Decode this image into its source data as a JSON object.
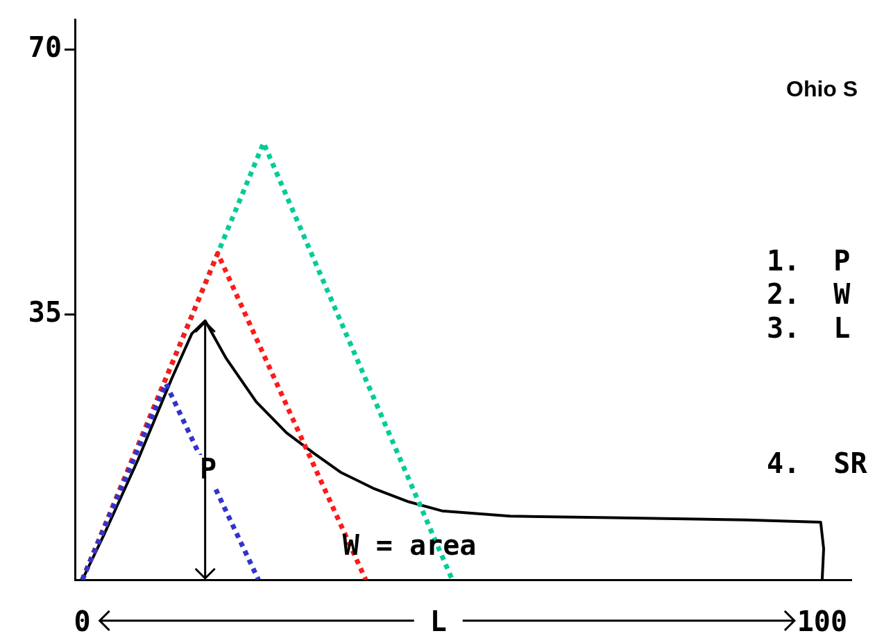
{
  "chart_data": {
    "type": "line",
    "xlabel": "L",
    "xlim": [
      -1,
      104
    ],
    "xticks": [
      0,
      100
    ],
    "ylim": [
      0,
      74
    ],
    "yticks": [
      35,
      70
    ],
    "grid": false,
    "legend": false,
    "marker": "none",
    "series": [
      {
        "type": "line",
        "color": "#3333cc",
        "line_style": "dotted",
        "x": [
          0,
          11.3,
          23.8
        ],
        "values": [
          0,
          25.9,
          0
        ]
      },
      {
        "type": "line",
        "color": "#ff1a1a",
        "line_style": "dotted",
        "x": [
          0,
          18.3,
          38.3
        ],
        "values": [
          0,
          43.1,
          0
        ]
      },
      {
        "type": "line",
        "color": "#00cc99",
        "line_style": "dotted",
        "x": [
          0,
          24.5,
          50
        ],
        "values": [
          0,
          57.7,
          0
        ]
      },
      {
        "type": "line",
        "color": "#000000",
        "line_style": "solid",
        "x": [
          0,
          2.9,
          7.5,
          12.1,
          14.8,
          16.6,
          19.4,
          23.5,
          27.6,
          31.3,
          34.9,
          39.5,
          44.1,
          48.6,
          57.8,
          71.5,
          89.8,
          99.8,
          100.2,
          100
        ],
        "values": [
          0,
          5.9,
          15.8,
          26.6,
          32.5,
          34.2,
          29.3,
          23.5,
          19.4,
          16.7,
          14.2,
          12,
          10.3,
          9.1,
          8.4,
          8.2,
          7.9,
          7.6,
          4.1,
          0
        ]
      }
    ],
    "annotations": [
      "P",
      "W = area",
      "Ohio S",
      "1.  P",
      "2.  W",
      "3.  L",
      "4.  SR"
    ]
  }
}
